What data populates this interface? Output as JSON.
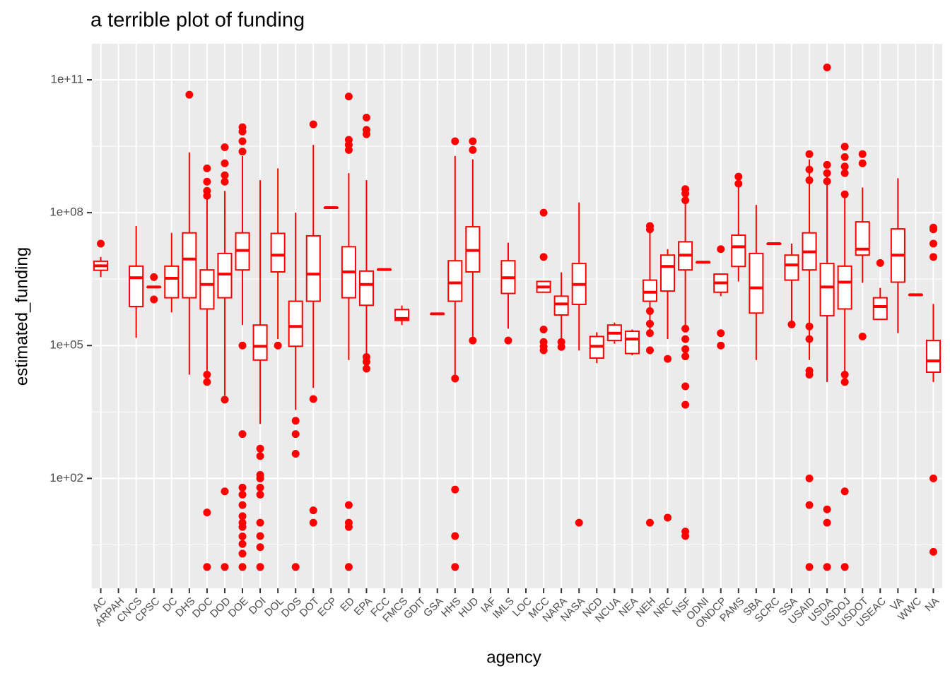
{
  "chart_data": {
    "type": "boxplot",
    "title": "a terrible plot of funding",
    "x_label": "agency",
    "y_label": "estimated_funding",
    "log_scale": true,
    "grid": true,
    "box_color": "#ff0000",
    "outlier_color": "#ff0000",
    "ylim": [
      0.33,
      650000000000
    ],
    "yticks": [
      {
        "value": 100000000000,
        "label": "1e+11"
      },
      {
        "value": 100000000,
        "label": "1e+08"
      },
      {
        "value": 100000,
        "label": "1e+05"
      },
      {
        "value": 100,
        "label": "1e+02"
      }
    ],
    "categories": [
      "AC",
      "ARPAH",
      "CNCS",
      "CPSC",
      "DC",
      "DHS",
      "DOC",
      "DOD",
      "DOE",
      "DOI",
      "DOL",
      "DOS",
      "DOT",
      "ECP",
      "ED",
      "EPA",
      "FCC",
      "FMCS",
      "GDIT",
      "GSA",
      "HHS",
      "HUD",
      "IAF",
      "IMLS",
      "LOC",
      "MCC",
      "NARA",
      "NASA",
      "NCD",
      "NCUA",
      "NEA",
      "NEH",
      "NRC",
      "NSF",
      "ODNI",
      "ONDCP",
      "PAMS",
      "SBA",
      "SCRC",
      "SSA",
      "USAID",
      "USDA",
      "USDOJ",
      "USDOT",
      "USEAC",
      "VA",
      "WWC",
      "NA"
    ],
    "boxes": [
      {
        "lower": 3500000,
        "q1": 5000000,
        "median": 6300000,
        "q3": 8000000,
        "upper": 10000000,
        "outliers": [
          20000000
        ]
      },
      null,
      {
        "lower": 150000,
        "q1": 760000,
        "median": 3400000,
        "q3": 6200000,
        "upper": 50000000,
        "outliers": []
      },
      {
        "lower": 2100000,
        "q1": 2100000,
        "median": 2100000,
        "q3": 2100000,
        "upper": 2100000,
        "outliers": [
          3500000,
          1100000
        ]
      },
      {
        "lower": 560000,
        "q1": 1200000,
        "median": 3300000,
        "q3": 6200000,
        "upper": 35000000,
        "outliers": []
      },
      {
        "lower": 22000,
        "q1": 1200000,
        "median": 9000000,
        "q3": 35000000,
        "upper": 2300000000,
        "outliers": [
          46000000000
        ]
      },
      {
        "lower": 27000,
        "q1": 670000,
        "median": 2400000,
        "q3": 5100000,
        "upper": 220000000,
        "outliers": [
          1000000000,
          500000000,
          310000000,
          240000000,
          22000,
          15000,
          17,
          1
        ]
      },
      {
        "lower": 7400,
        "q1": 1200000,
        "median": 4100000,
        "q3": 12000000,
        "upper": 310000000,
        "outliers": [
          3000000000,
          1300000000,
          700000000,
          500000000,
          6000,
          51,
          1
        ]
      },
      {
        "lower": 290000,
        "q1": 5100000,
        "median": 14000000,
        "q3": 35000000,
        "upper": 1900000000,
        "outliers": [
          8500000000,
          6800000000,
          4100000000,
          2400000000,
          100000,
          1000,
          62,
          43,
          25,
          14,
          10,
          8,
          4.9,
          3.3,
          2,
          1
        ]
      },
      {
        "lower": 1700,
        "q1": 47000,
        "median": 96000,
        "q3": 290000,
        "upper": 540000000,
        "outliers": [
          470,
          320,
          120,
          100,
          62,
          43,
          10,
          5,
          2.8,
          1
        ]
      },
      {
        "lower": 140000,
        "q1": 4600000,
        "median": 11000000,
        "q3": 34000000,
        "upper": 1000000000,
        "outliers": [
          100000
        ]
      },
      {
        "lower": 3500,
        "q1": 96000,
        "median": 270000,
        "q3": 1000000,
        "upper": 100000000,
        "outliers": [
          2000,
          1000,
          360,
          1
        ]
      },
      {
        "lower": 11000,
        "q1": 1000000,
        "median": 4100000,
        "q3": 30000000,
        "upper": 3400000000,
        "outliers": [
          9900000000,
          6200,
          19,
          10
        ]
      },
      {
        "lower": 130000000,
        "q1": 130000000,
        "median": 130000000,
        "q3": 130000000,
        "upper": 130000000,
        "outliers": []
      },
      {
        "lower": 47000,
        "q1": 1200000,
        "median": 4600000,
        "q3": 17000000,
        "upper": 780000000,
        "outliers": [
          42000000000,
          4400000000,
          3400000000,
          2600000000,
          25,
          10,
          8,
          1
        ]
      },
      {
        "lower": 27000,
        "q1": 810000,
        "median": 2400000,
        "q3": 4800000,
        "upper": 540000000,
        "outliers": [
          14000000000,
          7400000000,
          5900000000,
          55000,
          43000,
          30000
        ]
      },
      {
        "lower": 5200000,
        "q1": 5200000,
        "median": 5200000,
        "q3": 5200000,
        "upper": 5200000,
        "outliers": []
      },
      {
        "lower": 290000,
        "q1": 370000,
        "median": 410000,
        "q3": 650000,
        "upper": 800000,
        "outliers": []
      },
      null,
      {
        "lower": 520000,
        "q1": 520000,
        "median": 520000,
        "q3": 520000,
        "upper": 520000,
        "outliers": []
      },
      {
        "lower": 22000,
        "q1": 1000000,
        "median": 2600000,
        "q3": 8200000,
        "upper": 1900000000,
        "outliers": [
          4100000000,
          18000,
          56,
          5,
          1
        ]
      },
      {
        "lower": 130000,
        "q1": 4600000,
        "median": 14000000,
        "q3": 48000000,
        "upper": 1600000000,
        "outliers": [
          4100000000,
          2600000000,
          130000
        ]
      },
      null,
      {
        "lower": 240000,
        "q1": 1500000,
        "median": 3400000,
        "q3": 8200000,
        "upper": 21000000,
        "outliers": [
          130000
        ]
      },
      null,
      {
        "lower": 1600000,
        "q1": 1600000,
        "median": 2100000,
        "q3": 2800000,
        "upper": 2800000,
        "outliers": [
          100000000,
          10000000,
          230000,
          120000,
          96000,
          78000
        ]
      },
      {
        "lower": 140000,
        "q1": 490000,
        "median": 870000,
        "q3": 1300000,
        "upper": 4500000,
        "outliers": [
          120000,
          93000
        ]
      },
      {
        "lower": 77000,
        "q1": 850000,
        "median": 2400000,
        "q3": 7100000,
        "upper": 170000000,
        "outliers": [
          10
        ]
      },
      {
        "lower": 40000,
        "q1": 52000,
        "median": 96000,
        "q3": 160000,
        "upper": 200000,
        "outliers": []
      },
      {
        "lower": 110000,
        "q1": 130000,
        "median": 190000,
        "q3": 290000,
        "upper": 330000,
        "outliers": []
      },
      {
        "lower": 60000,
        "q1": 66000,
        "median": 140000,
        "q3": 210000,
        "upper": 230000,
        "outliers": []
      },
      {
        "lower": 190000,
        "q1": 1000000,
        "median": 1600000,
        "q3": 3000000,
        "upper": 50000000,
        "outliers": [
          50000000,
          42000000,
          600000,
          310000,
          190000,
          78000,
          10
        ]
      },
      {
        "lower": 140000,
        "q1": 1700000,
        "median": 6100000,
        "q3": 11000000,
        "upper": 15000000,
        "outliers": [
          50000,
          13
        ]
      },
      {
        "lower": 290000,
        "q1": 5100000,
        "median": 11000000,
        "q3": 22000000,
        "upper": 290000000,
        "outliers": [
          340000000,
          270000000,
          190000000,
          240000,
          140000,
          83000,
          57000,
          12000,
          4600,
          6.3,
          5
        ]
      },
      {
        "lower": 7600000,
        "q1": 7600000,
        "median": 7600000,
        "q3": 7600000,
        "upper": 7600000,
        "outliers": []
      },
      {
        "lower": 1300000,
        "q1": 1600000,
        "median": 2600000,
        "q3": 4100000,
        "upper": 4100000,
        "outliers": [
          15000000,
          190000,
          100000
        ]
      },
      {
        "lower": 2800000,
        "q1": 6100000,
        "median": 17000000,
        "q3": 31000000,
        "upper": 420000000,
        "outliers": [
          650000000,
          450000000
        ]
      },
      {
        "lower": 47000,
        "q1": 540000,
        "median": 2000000,
        "q3": 12000000,
        "upper": 150000000,
        "outliers": []
      },
      {
        "lower": 20000000,
        "q1": 20000000,
        "median": 20000000,
        "q3": 20000000,
        "upper": 20000000,
        "outliers": []
      },
      {
        "lower": 290000,
        "q1": 3000000,
        "median": 6600000,
        "q3": 11000000,
        "upper": 20000000,
        "outliers": [
          300000
        ]
      },
      {
        "lower": 47000,
        "q1": 5100000,
        "median": 13000000,
        "q3": 35000000,
        "upper": 1600000000,
        "outliers": [
          2100000000,
          940000000,
          540000000,
          270000,
          140000,
          27000,
          22000,
          100,
          25,
          1
        ]
      },
      {
        "lower": 15000,
        "q1": 470000,
        "median": 2100000,
        "q3": 7100000,
        "upper": 900000000,
        "outliers": [
          190000000000,
          1200000000,
          780000000,
          510000000,
          20,
          10,
          1
        ]
      },
      {
        "lower": 22000,
        "q1": 670000,
        "median": 2700000,
        "q3": 6200000,
        "upper": 250000000,
        "outliers": [
          3100000000,
          1800000000,
          1100000000,
          780000000,
          260000000,
          22000,
          15000,
          51,
          1
        ]
      },
      {
        "lower": 2600000,
        "q1": 11000000,
        "median": 15000000,
        "q3": 62000000,
        "upper": 370000000,
        "outliers": [
          2100000000,
          1300000000,
          160000
        ]
      },
      {
        "lower": 390000,
        "q1": 390000,
        "median": 760000,
        "q3": 1200000,
        "upper": 2000000,
        "outliers": [
          7300000
        ]
      },
      {
        "lower": 190000,
        "q1": 2700000,
        "median": 11000000,
        "q3": 43000000,
        "upper": 600000000,
        "outliers": []
      },
      {
        "lower": 1400000,
        "q1": 1400000,
        "median": 1400000,
        "q3": 1400000,
        "upper": 1400000,
        "outliers": []
      },
      {
        "lower": 15000,
        "q1": 25000,
        "median": 45000,
        "q3": 130000,
        "upper": 870000,
        "outliers": [
          46000000,
          42000000,
          20000000,
          10000000,
          100,
          2.2
        ]
      }
    ]
  }
}
